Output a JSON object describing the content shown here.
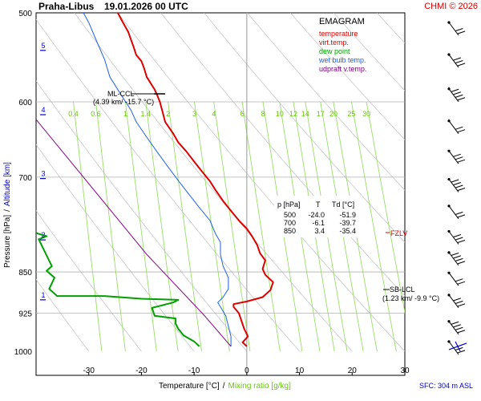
{
  "header": {
    "station": "Praha-Libus",
    "datetime": "19.01.2026 00 UTC",
    "copyright": "CHMI © 2026"
  },
  "legend": {
    "title": "EMAGRAM",
    "items": [
      {
        "label": "temperature",
        "color": "#dd0000"
      },
      {
        "label": "virt.temp.",
        "color": "#dd0000"
      },
      {
        "label": "dew point",
        "color": "#00a000"
      },
      {
        "label": "wet bulb temp.",
        "color": "#2060e0"
      },
      {
        "label": "udpraft v.temp.",
        "color": "#800080"
      }
    ]
  },
  "axes": {
    "y_label": "Pressure [hPa]",
    "y_label_sep": "/",
    "y2_label": "Altitude [km]",
    "x_label": "Temperature [°C]",
    "x_label_sep": "/",
    "x2_label": "Mixing ratio [g/kg]",
    "sfc_note": "SFC: 304 m ASL"
  },
  "chart_data": {
    "type": "line",
    "title": "Praha-Libus 19.01.2026 00 UTC",
    "xlabel": "Temperature [°C]",
    "ylabel": "Pressure [hPa]",
    "xlim": [
      -40,
      30
    ],
    "ylim": [
      1000,
      500
    ],
    "y_scale": "log",
    "x_ticks": [
      -30,
      -20,
      -10,
      0,
      10,
      20,
      30
    ],
    "p_ticks": [
      500,
      600,
      700,
      850,
      925,
      1000
    ],
    "altitude_ticks_km": [
      {
        "km": 1,
        "p": 900
      },
      {
        "km": 2,
        "p": 796
      },
      {
        "km": 3,
        "p": 702
      },
      {
        "km": 4,
        "p": 616
      },
      {
        "km": 5,
        "p": 540
      }
    ],
    "mixing_ratio_labels": [
      "0.4",
      "0.6",
      "1",
      "1.4",
      "2",
      "3",
      "4",
      "6",
      "8",
      "10",
      "12",
      "14",
      "17",
      "20",
      "25",
      "30"
    ],
    "series": [
      {
        "name": "temperature",
        "color": "#dd0000",
        "points": [
          [
            0,
            990
          ],
          [
            -0.8,
            982
          ],
          [
            0.2,
            970
          ],
          [
            -0.5,
            955
          ],
          [
            -1,
            940
          ],
          [
            -1.5,
            925
          ],
          [
            -2.5,
            913
          ],
          [
            -2.5,
            908
          ],
          [
            0,
            903
          ],
          [
            3,
            895
          ],
          [
            4.5,
            882
          ],
          [
            5,
            868
          ],
          [
            3.5,
            855
          ],
          [
            3,
            845
          ],
          [
            3.5,
            830
          ],
          [
            2.5,
            818
          ],
          [
            2,
            805
          ],
          [
            1,
            790
          ],
          [
            0,
            778
          ],
          [
            -1.5,
            765
          ],
          [
            -3,
            750
          ],
          [
            -4.5,
            735
          ],
          [
            -6,
            718
          ],
          [
            -7,
            706
          ],
          [
            -8.5,
            692
          ],
          [
            -10,
            678
          ],
          [
            -11.5,
            664
          ],
          [
            -13,
            652
          ],
          [
            -14,
            640
          ],
          [
            -15.5,
            625
          ],
          [
            -16,
            612
          ],
          [
            -16.5,
            600
          ],
          [
            -17,
            592
          ],
          [
            -17.5,
            585
          ],
          [
            -18.2,
            578
          ],
          [
            -19,
            570
          ],
          [
            -19.5,
            560
          ],
          [
            -20,
            552
          ],
          [
            -21,
            545
          ],
          [
            -21.5,
            536
          ],
          [
            -22,
            528
          ],
          [
            -22.5,
            520
          ],
          [
            -23.5,
            510
          ],
          [
            -24.5,
            500
          ]
        ]
      },
      {
        "name": "dew point",
        "color": "#00a000",
        "points": [
          [
            -9,
            990
          ],
          [
            -10,
            980
          ],
          [
            -12,
            968
          ],
          [
            -13,
            955
          ],
          [
            -13.5,
            945
          ],
          [
            -13.5,
            935
          ],
          [
            -17.5,
            930
          ],
          [
            -18,
            915
          ],
          [
            -14,
            905
          ],
          [
            -13,
            900
          ],
          [
            -20,
            898
          ],
          [
            -27,
            893
          ],
          [
            -36,
            893
          ],
          [
            -37.5,
            880
          ],
          [
            -36.5,
            860
          ],
          [
            -38,
            848
          ],
          [
            -37,
            840
          ],
          [
            -39.5,
            795
          ],
          [
            -38,
            790
          ],
          [
            -40,
            785
          ]
        ]
      },
      {
        "name": "wet bulb temp.",
        "color": "#2060e0",
        "points": [
          [
            -3,
            990
          ],
          [
            -3,
            970
          ],
          [
            -3.5,
            950
          ],
          [
            -4,
            930
          ],
          [
            -5,
            913
          ],
          [
            -5.5,
            905
          ],
          [
            -4.5,
            895
          ],
          [
            -3.5,
            880
          ],
          [
            -3.5,
            860
          ],
          [
            -4.5,
            840
          ],
          [
            -5,
            820
          ],
          [
            -5,
            800
          ],
          [
            -6,
            785
          ],
          [
            -7,
            765
          ],
          [
            -9,
            745
          ],
          [
            -11,
            725
          ],
          [
            -13,
            705
          ],
          [
            -15,
            685
          ],
          [
            -17,
            665
          ],
          [
            -19,
            645
          ],
          [
            -21,
            625
          ],
          [
            -22,
            610
          ],
          [
            -24,
            590
          ],
          [
            -26,
            570
          ],
          [
            -27,
            550
          ],
          [
            -28.5,
            530
          ],
          [
            -30,
            510
          ],
          [
            -31,
            500
          ]
        ]
      },
      {
        "name": "udpraft v.temp.",
        "color": "#800080",
        "points": [
          [
            -3,
            990
          ],
          [
            -8,
            930
          ],
          [
            -19,
            820
          ],
          [
            -31,
            700
          ],
          [
            -48,
            560
          ],
          [
            -55,
            500
          ]
        ]
      }
    ],
    "annotations": [
      {
        "label": "ML-CCL",
        "sub": "(4.39 km/ -15.7 °C)",
        "p": 590,
        "t": -15.7
      },
      {
        "label": "SB-LCL",
        "sub": "(1.23 km/ -9.9 °C)",
        "p": 880,
        "t": 28
      },
      {
        "label": "FZLV",
        "p": 790,
        "t": 29
      }
    ],
    "table": {
      "headers": [
        "p [hPa]",
        "T",
        "Td [°C]"
      ],
      "rows": [
        [
          "500",
          "-24.0",
          "-51.9"
        ],
        [
          "700",
          "-6.1",
          "-39.7"
        ],
        [
          "850",
          "3.4",
          "-35.4"
        ]
      ]
    },
    "wind_barbs_p": [
      515,
      550,
      590,
      630,
      670,
      710,
      750,
      790,
      825,
      860,
      900,
      950,
      990
    ]
  }
}
